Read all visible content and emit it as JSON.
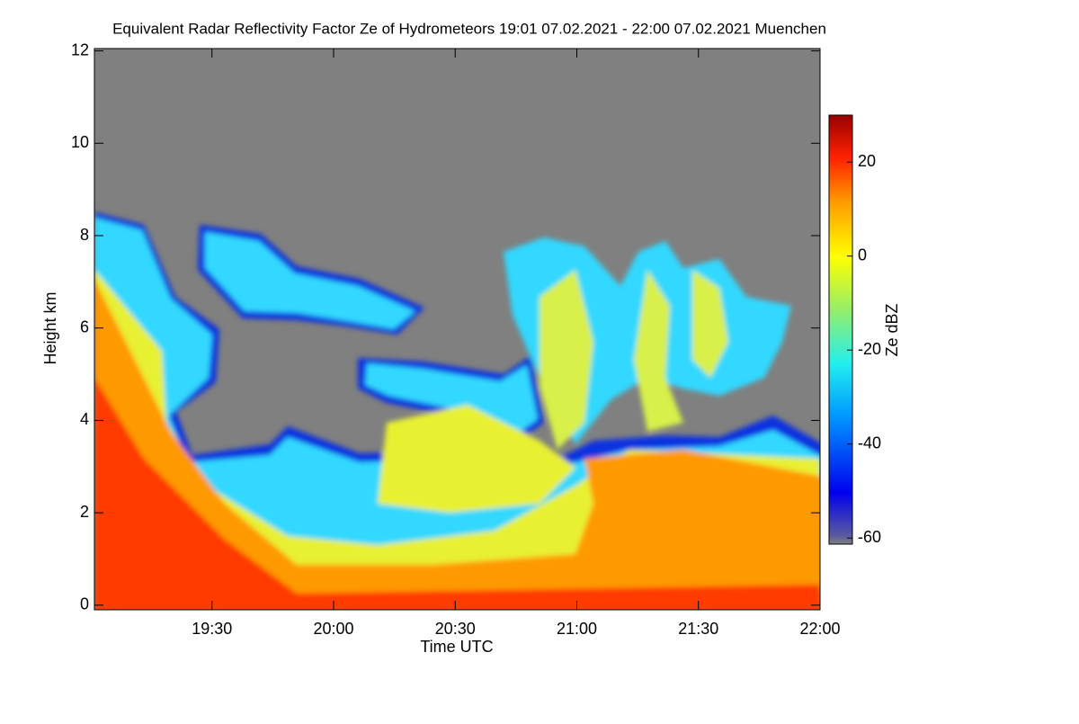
{
  "chart_data": {
    "type": "heatmap",
    "title": "Equivalent Radar Reflectivity Factor Ze of Hydrometeors   19:01 07.02.2021 - 22:00 07.02.2021 Muenchen",
    "xlabel": "Time UTC",
    "ylabel": "Height km",
    "colorbar_label": "Ze dBZ",
    "xlim": [
      19.0167,
      22
    ],
    "xticks": [
      {
        "value": 19.5,
        "label": "19:30"
      },
      {
        "value": 20,
        "label": "20:00"
      },
      {
        "value": 20.5,
        "label": "20:30"
      },
      {
        "value": 21,
        "label": "21:00"
      },
      {
        "value": 21.5,
        "label": "21:30"
      },
      {
        "value": 22,
        "label": "22:00"
      }
    ],
    "ylim": [
      -0.1,
      12.05
    ],
    "yticks": [
      0,
      2,
      4,
      6,
      8,
      10,
      12
    ],
    "clim": [
      -61.3,
      30
    ],
    "cticks": [
      -60,
      -40,
      -20,
      0,
      20
    ]
  }
}
